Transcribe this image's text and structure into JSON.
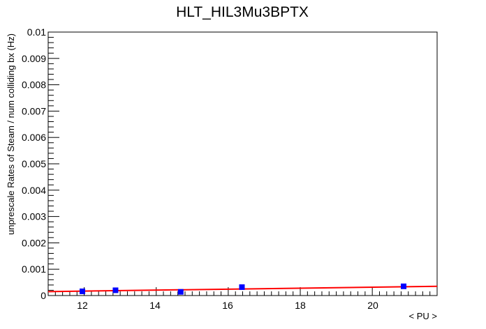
{
  "chart_data": {
    "type": "scatter",
    "title": "HLT_HIL3Mu3BPTX",
    "xlabel": "< PU >",
    "ylabel": "unprescale Rates of Steam / num colliding bx (Hz)",
    "xlim": [
      11.0,
      21.8
    ],
    "ylim": [
      0,
      0.01
    ],
    "x_tick_labels": [
      "12",
      "14",
      "16",
      "18",
      "20"
    ],
    "y_tick_labels": [
      "0",
      "0.001",
      "0.002",
      "0.003",
      "0.004",
      "0.005",
      "0.006",
      "0.007",
      "0.008",
      "0.009",
      "0.01"
    ],
    "grid": false,
    "legend": "none",
    "series": [
      {
        "type": "scatter",
        "color": "#0000ff",
        "points": [
          {
            "x": 11.95,
            "y": 0.00016
          },
          {
            "x": 12.87,
            "y": 0.0002
          },
          {
            "x": 14.68,
            "y": 0.00014
          },
          {
            "x": 16.38,
            "y": 0.00032
          },
          {
            "x": 20.87,
            "y": 0.00035
          }
        ]
      },
      {
        "type": "line",
        "color": "#ff0000",
        "x": [
          11.0,
          21.8
        ],
        "y": [
          0.00015,
          0.00035
        ]
      }
    ]
  }
}
